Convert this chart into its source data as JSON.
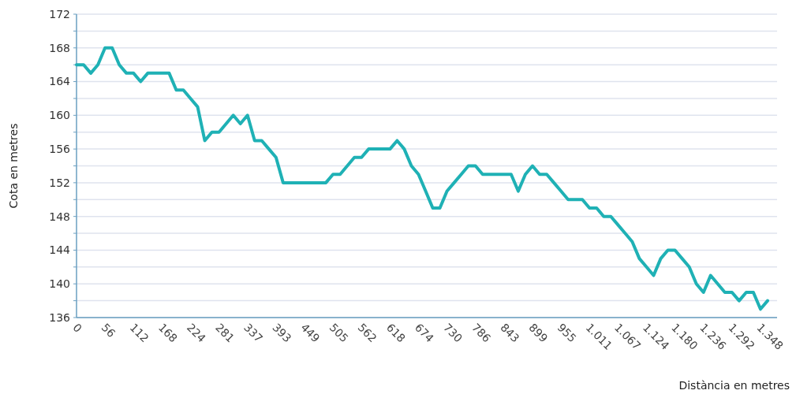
{
  "chart_data": {
    "type": "line",
    "xlabel": "Distància en metres",
    "ylabel": "Cota en metres",
    "categories": [
      "0",
      null,
      null,
      null,
      "56",
      null,
      null,
      null,
      "112",
      null,
      null,
      null,
      "168",
      null,
      null,
      null,
      "224",
      null,
      null,
      null,
      "281",
      null,
      null,
      null,
      "337",
      null,
      null,
      null,
      "393",
      null,
      null,
      null,
      "449",
      null,
      null,
      null,
      "505",
      null,
      null,
      null,
      "562",
      null,
      null,
      null,
      "618",
      null,
      null,
      null,
      "674",
      null,
      null,
      null,
      "730",
      null,
      null,
      null,
      "786",
      null,
      null,
      null,
      "843",
      null,
      null,
      null,
      "899",
      null,
      null,
      null,
      "955",
      null,
      null,
      null,
      "1.011",
      null,
      null,
      null,
      "1.067",
      null,
      null,
      null,
      "1.124",
      null,
      null,
      null,
      "1.180",
      null,
      null,
      null,
      "1.236",
      null,
      null,
      null,
      "1.292",
      null,
      null,
      null,
      "1.348",
      null
    ],
    "series": [
      {
        "color": "#1fb1b5",
        "values": [
          166,
          166,
          165,
          166,
          168,
          168,
          166,
          165,
          165,
          164,
          165,
          165,
          165,
          165,
          163,
          163,
          162,
          161,
          157,
          158,
          158,
          159,
          160,
          159,
          160,
          157,
          157,
          156,
          155,
          152,
          152,
          152,
          152,
          152,
          152,
          152,
          153,
          153,
          154,
          155,
          155,
          156,
          156,
          156,
          156,
          157,
          156,
          154,
          153,
          151,
          149,
          149,
          151,
          152,
          153,
          154,
          154,
          153,
          153,
          153,
          153,
          153,
          151,
          153,
          154,
          153,
          153,
          152,
          151,
          150,
          150,
          150,
          149,
          149,
          148,
          148,
          147,
          146,
          145,
          143,
          142,
          141,
          143,
          144,
          144,
          143,
          142,
          140,
          139,
          141,
          140,
          139,
          139,
          138,
          139,
          139,
          137,
          138
        ]
      }
    ],
    "ylim": [
      136,
      172
    ],
    "yticks": [
      136,
      {
        "value": 138,
        "label": null
      },
      140,
      {
        "value": 142,
        "label": null
      },
      144,
      {
        "value": 146,
        "label": null
      },
      148,
      {
        "value": 150,
        "label": null
      },
      152,
      {
        "value": 154,
        "label": null
      },
      156,
      {
        "value": 158,
        "label": null
      },
      160,
      {
        "value": 162,
        "label": null
      },
      164,
      {
        "value": 166,
        "label": null
      },
      168,
      {
        "value": 170,
        "label": null
      },
      172
    ],
    "grid": "y",
    "marker": "none",
    "line_style": "solid"
  }
}
